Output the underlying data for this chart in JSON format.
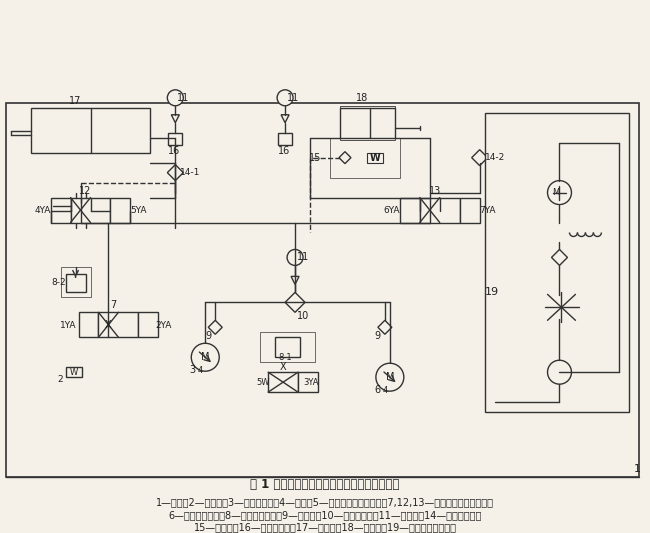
{
  "title": "图 1 板材成形专用双向油压机液压系统原理图",
  "caption_line1": "1—油箱；2—溢流阀；3—恒压变量泵；4—电机；5—二位四通电磁换向阀；7,12,13—三位四通电磁换向阀；",
  "caption_line2": "6—恒功率变量泵；8—先导式溢流阀；9—单向阀；10—高压过滤器；11—压力表；14—液控单向阀；",
  "caption_line3": "15—平衡阀；16—压力传感器；17—水平缸；18—垂直缸；19—独立式冷却过滤器",
  "bg_color": "#f5f0e8",
  "line_color": "#333333",
  "text_color": "#222222",
  "fig_width": 6.5,
  "fig_height": 5.33
}
